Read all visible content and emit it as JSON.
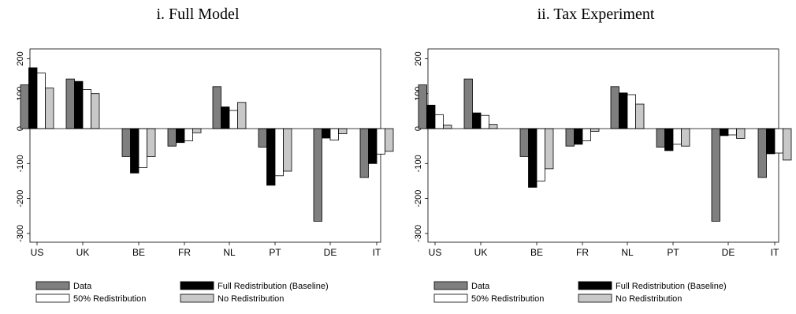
{
  "chart_data": [
    {
      "type": "bar",
      "title": "i. Full Model",
      "categories": [
        "US",
        "UK",
        "BE",
        "FR",
        "NL",
        "PT",
        "DE",
        "IT"
      ],
      "ylim": [
        -310,
        220
      ],
      "yticks": [
        -300,
        -200,
        -100,
        0,
        100,
        200
      ],
      "legend_position": "bottom",
      "series": [
        {
          "name": "Data",
          "color": "#7f7f7f",
          "values": [
            125,
            142,
            -80,
            -50,
            120,
            -53,
            -265,
            -140
          ]
        },
        {
          "name": "Full Redistribution (Baseline)",
          "color": "#000000",
          "values": [
            174,
            135,
            -127,
            -40,
            62,
            -162,
            -27,
            -100
          ]
        },
        {
          "name": "50% Redistribution",
          "color": "#ffffff",
          "values": [
            159,
            112,
            -112,
            -35,
            52,
            -135,
            -33,
            -73
          ]
        },
        {
          "name": "No Redistribution",
          "color": "#c8c8c8",
          "values": [
            116,
            100,
            -80,
            -12,
            75,
            -122,
            -15,
            -65
          ]
        }
      ]
    },
    {
      "type": "bar",
      "title": "ii. Tax Experiment",
      "categories": [
        "US",
        "UK",
        "BE",
        "FR",
        "NL",
        "PT",
        "DE",
        "IT"
      ],
      "ylim": [
        -310,
        220
      ],
      "yticks": [
        -300,
        -200,
        -100,
        0,
        100,
        200
      ],
      "legend_position": "bottom",
      "series": [
        {
          "name": "Data",
          "color": "#7f7f7f",
          "values": [
            125,
            142,
            -80,
            -50,
            120,
            -53,
            -265,
            -140
          ]
        },
        {
          "name": "Full Redistribution (Baseline)",
          "color": "#000000",
          "values": [
            67,
            45,
            -168,
            -45,
            102,
            -63,
            -20,
            -72
          ]
        },
        {
          "name": "50% Redistribution",
          "color": "#ffffff",
          "values": [
            40,
            38,
            -150,
            -35,
            97,
            -45,
            -18,
            -70
          ]
        },
        {
          "name": "No Redistribution",
          "color": "#c8c8c8",
          "values": [
            10,
            12,
            -115,
            -8,
            70,
            -50,
            -28,
            -90
          ]
        }
      ]
    }
  ]
}
